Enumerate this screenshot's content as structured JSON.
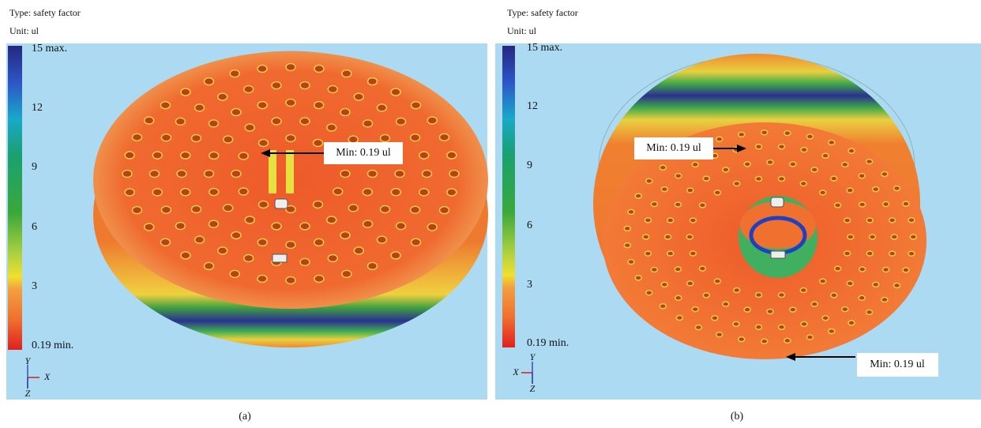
{
  "panels": [
    {
      "caption": "(a)",
      "type_label": "Type: safety factor",
      "unit_label": "Unit: ul",
      "legend_labels": [
        "15 max.",
        "12",
        "9",
        "6",
        "3",
        "0.19 min."
      ],
      "axes": [
        "Y",
        "X",
        "Z"
      ],
      "annotations": [
        "Min: 0.19 ul"
      ]
    },
    {
      "caption": "(b)",
      "type_label": "Type: safety factor",
      "unit_label": "Unit: ul",
      "legend_labels": [
        "15 max.",
        "12",
        "9",
        "6",
        "3",
        "0.19 min."
      ],
      "axes": [
        "Y",
        "X",
        "Z"
      ],
      "annotations": [
        "Min: 0.19 ul",
        "Min: 0.19 ul"
      ]
    }
  ]
}
